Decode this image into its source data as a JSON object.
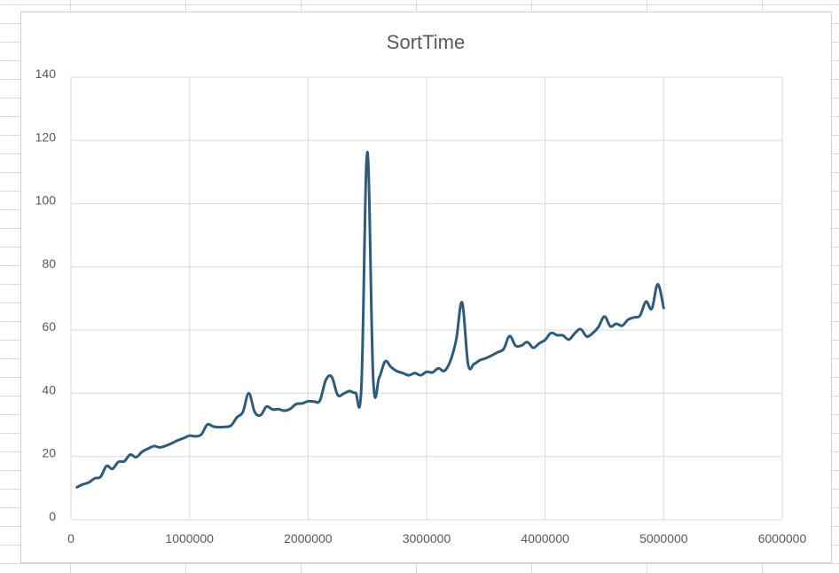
{
  "chart_data": {
    "type": "line",
    "title": "SortTime",
    "xlabel": "",
    "ylabel": "",
    "xlim": [
      0,
      6000000
    ],
    "ylim": [
      0,
      140
    ],
    "x_ticks": [
      "0",
      "1000000",
      "2000000",
      "3000000",
      "4000000",
      "5000000",
      "6000000"
    ],
    "y_ticks": [
      "0",
      "20",
      "40",
      "60",
      "80",
      "100",
      "120",
      "140"
    ],
    "grid": true,
    "line_color": "#2e5b7a",
    "series": [
      {
        "x": [
          50000,
          100000,
          150000,
          200000,
          250000,
          300000,
          350000,
          400000,
          450000,
          500000,
          550000,
          600000,
          650000,
          700000,
          750000,
          800000,
          850000,
          900000,
          950000,
          1000000,
          1050000,
          1100000,
          1150000,
          1200000,
          1250000,
          1300000,
          1350000,
          1400000,
          1450000,
          1500000,
          1550000,
          1600000,
          1650000,
          1700000,
          1750000,
          1800000,
          1850000,
          1900000,
          1950000,
          2000000,
          2050000,
          2100000,
          2150000,
          2200000,
          2250000,
          2300000,
          2350000,
          2400000,
          2450000,
          2500000,
          2550000,
          2600000,
          2650000,
          2700000,
          2750000,
          2800000,
          2850000,
          2900000,
          2950000,
          3000000,
          3050000,
          3100000,
          3150000,
          3200000,
          3250000,
          3300000,
          3350000,
          3400000,
          3450000,
          3500000,
          3550000,
          3600000,
          3650000,
          3700000,
          3750000,
          3800000,
          3850000,
          3900000,
          3950000,
          4000000,
          4050000,
          4100000,
          4150000,
          4200000,
          4250000,
          4300000,
          4350000,
          4400000,
          4450000,
          4500000,
          4550000,
          4600000,
          4650000,
          4700000,
          4750000,
          4800000,
          4850000,
          4900000,
          4950000,
          5000000
        ],
        "values": [
          10.3,
          11.2,
          11.8,
          13.1,
          13.6,
          17,
          16.1,
          18.3,
          18.5,
          20.6,
          19.8,
          21.5,
          22.5,
          23.3,
          22.9,
          23.4,
          24.2,
          25.1,
          25.8,
          26.6,
          26.4,
          27,
          30.1,
          29.5,
          29.3,
          29.4,
          29.8,
          32.4,
          34.1,
          40,
          34.1,
          33.1,
          35.8,
          34.9,
          35,
          34.5,
          35.1,
          36.6,
          36.8,
          37.5,
          37.4,
          37.7,
          44.2,
          45.2,
          39.5,
          39.9,
          40.7,
          40.2,
          42.1,
          116.3,
          44.4,
          45,
          50.1,
          48.3,
          47,
          46.4,
          45.7,
          46.4,
          45.7,
          46.8,
          46.6,
          47.9,
          47.1,
          50.2,
          57,
          68.7,
          49.2,
          49.3,
          50.5,
          51.1,
          52,
          53,
          54,
          58.1,
          55.1,
          55.1,
          56.2,
          54.4,
          55.8,
          56.9,
          59.1,
          58.4,
          58.3,
          57,
          59,
          60.3,
          58,
          59,
          61,
          64.3,
          61.2,
          62,
          61.4,
          63.3,
          64,
          64.6,
          69,
          66.8,
          74.5,
          67
        ]
      }
    ]
  }
}
